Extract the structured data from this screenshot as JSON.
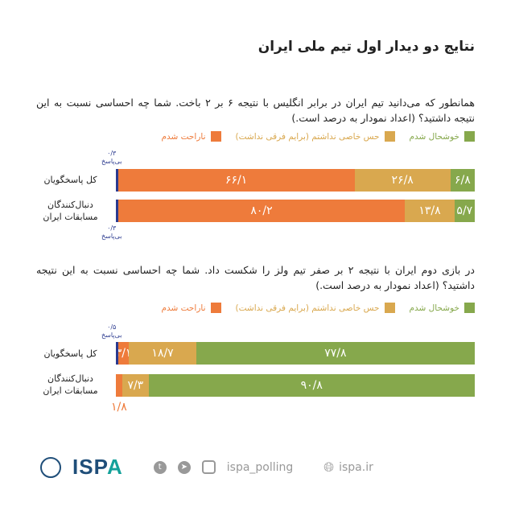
{
  "title": "نتایج دو دیدار اول تیم ملی ایران",
  "colors": {
    "upset": "#ee7b3b",
    "indifferent": "#d9a84f",
    "happy": "#86a84c",
    "no_answer": "#2b3a8f"
  },
  "chart_data": [
    {
      "type": "bar",
      "stacked": true,
      "orientation": "horizontal",
      "question": "همانطور که می‌دانید تیم ایران در برابر انگلیس با نتیجه ۶ بر ۲ باخت. شما چه احساسی نسبت به این نتیجه داشتید؟ (اعداد نمودار به درصد است.)",
      "legend": {
        "happy": "خوشحال شدم",
        "indifferent": "حس خاصی نداشتم (برایم فرقی نداشت)",
        "upset": "ناراحت شدم"
      },
      "no_answer_label": "بی‌پاسخ",
      "categories": [
        "کل پاسخگویان",
        "دنبال‌کنندگان مسابقات ایران"
      ],
      "rows": [
        {
          "no_answer": 0.3,
          "upset": 66.1,
          "indifferent": 26.8,
          "happy": 6.8,
          "labels": {
            "no_answer": "۰/۳",
            "upset": "۶۶/۱",
            "indifferent": "۲۶/۸",
            "happy": "۶/۸"
          }
        },
        {
          "no_answer": 0.3,
          "upset": 80.2,
          "indifferent": 13.8,
          "happy": 5.7,
          "labels": {
            "no_answer": "۰/۳",
            "upset": "۸۰/۲",
            "indifferent": "۱۳/۸",
            "happy": "۵/۷"
          }
        }
      ]
    },
    {
      "type": "bar",
      "stacked": true,
      "orientation": "horizontal",
      "question": "در بازی دوم ایران با نتیجه ۲ بر صفر تیم ولز را شکست داد. شما چه احساسی نسبت به این نتیجه داشتید؟ (اعداد نمودار به درصد است.)",
      "legend": {
        "happy": "خوشحال شدم",
        "indifferent": "حس خاصی نداشتم (برایم فرقی نداشت)",
        "upset": "ناراحت شدم"
      },
      "no_answer_label": "بی‌پاسخ",
      "categories": [
        "کل پاسخگویان",
        "دنبال‌کنندگان مسابقات ایران"
      ],
      "rows": [
        {
          "no_answer": 0.5,
          "upset": 3.1,
          "indifferent": 18.7,
          "happy": 77.8,
          "labels": {
            "no_answer": "۰/۵",
            "upset": "۳/۱",
            "indifferent": "۱۸/۷",
            "happy": "۷۷/۸"
          }
        },
        {
          "no_answer": 0,
          "upset": 1.8,
          "indifferent": 7.3,
          "happy": 90.8,
          "labels": {
            "upset": "۱/۸",
            "indifferent": "۷/۳",
            "happy": "۹۰/۸"
          }
        }
      ]
    }
  ],
  "footer": {
    "logo": "ISP",
    "logo_accent": "A",
    "social_handle": "ispa_polling",
    "website": "ispa.ir",
    "icons": [
      "twitter-icon",
      "telegram-icon",
      "instagram-icon",
      "globe-icon"
    ]
  }
}
